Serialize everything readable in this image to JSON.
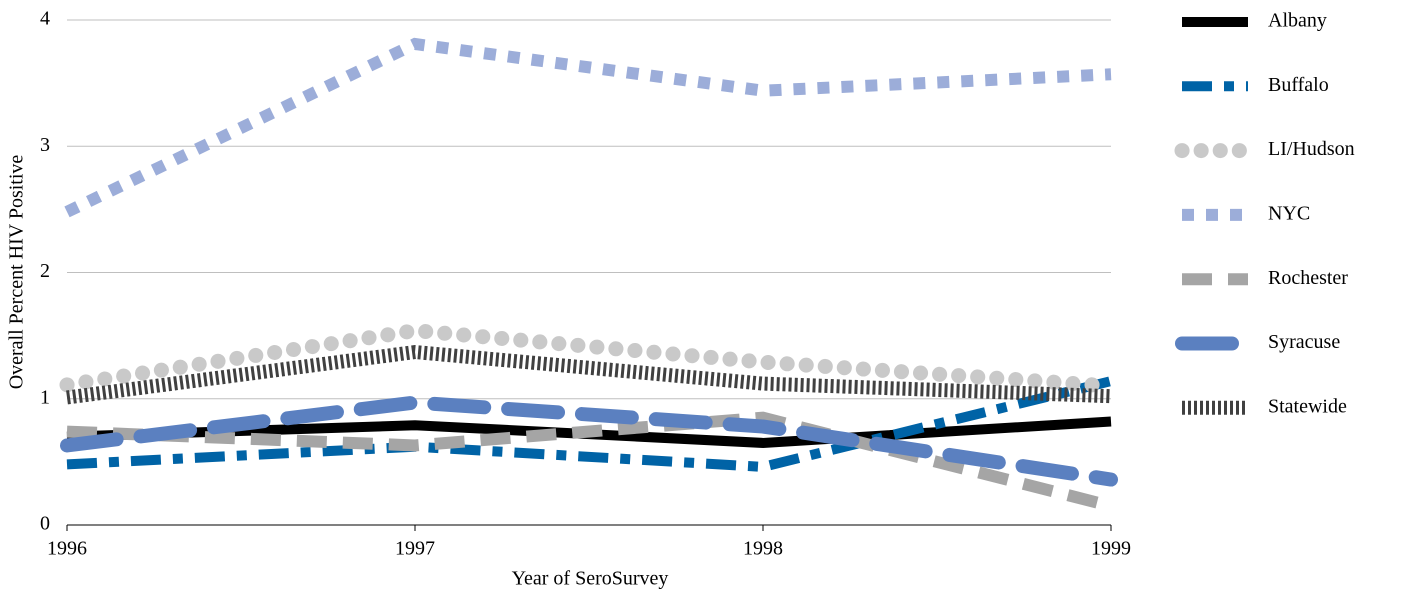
{
  "chart_data": {
    "type": "line",
    "x_label": "Year of SeroSurvey",
    "y_label": "Overall Percent HIV Positive",
    "x": [
      1996,
      1997,
      1998,
      1999
    ],
    "xlim": [
      1996,
      1999
    ],
    "xticks": [
      1996,
      1997,
      1998,
      1999
    ],
    "ylim": [
      0,
      4
    ],
    "yticks": [
      0,
      1,
      2,
      3,
      4
    ],
    "grid": true,
    "legend": "right",
    "series": [
      {
        "name": "Albany",
        "color": "#000000",
        "dash": "solid",
        "values": [
          0.7,
          0.79,
          0.65,
          0.82
        ]
      },
      {
        "name": "Buffalo",
        "color": "#0063a6",
        "dash": "dashdot",
        "values": [
          0.48,
          0.62,
          0.46,
          1.14
        ]
      },
      {
        "name": "LI/Hudson",
        "color": "#c9c9c9",
        "dash": "round-dot",
        "values": [
          1.11,
          1.54,
          1.29,
          1.1
        ]
      },
      {
        "name": "NYC",
        "color": "#9cadd9",
        "dash": "square-dot",
        "values": [
          2.48,
          3.81,
          3.44,
          3.57
        ]
      },
      {
        "name": "Rochester",
        "color": "#a5a5a5",
        "dash": "dash",
        "values": [
          0.74,
          0.63,
          0.85,
          0.15
        ]
      },
      {
        "name": "Syracuse",
        "color": "#5b80c0",
        "dash": "long-dash",
        "values": [
          0.63,
          0.97,
          0.78,
          0.36
        ]
      },
      {
        "name": "Statewide",
        "color": "#404040",
        "dash": "fine-dot",
        "values": [
          1.01,
          1.37,
          1.12,
          1.02
        ]
      }
    ]
  }
}
